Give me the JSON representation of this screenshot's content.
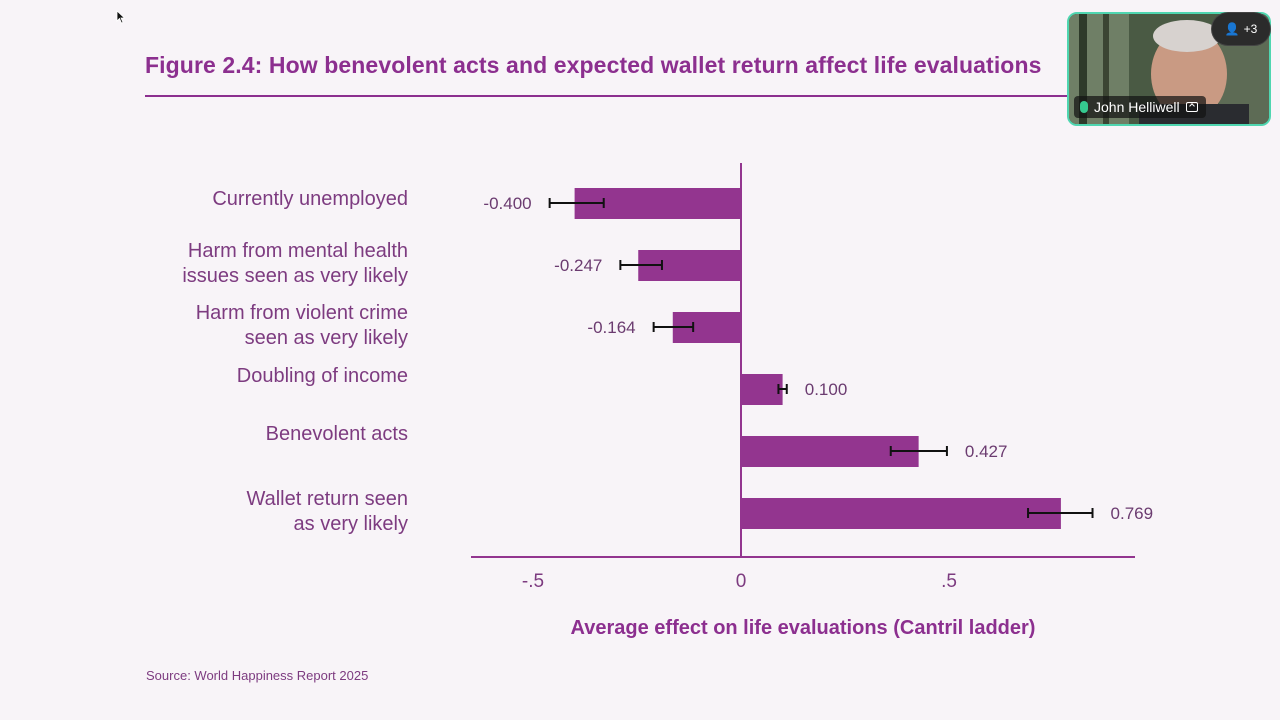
{
  "figure": {
    "title": "Figure 2.4: How benevolent acts and expected wallet return affect life evaluations",
    "source": "Source: World Happiness Report 2025"
  },
  "colors": {
    "accent": "#8c2f8f",
    "bar": "#93358f",
    "text": "#7d3b80",
    "background": "#f8f4f8"
  },
  "chart_data": {
    "type": "bar",
    "orientation": "horizontal",
    "categories": [
      [
        "Currently unemployed"
      ],
      [
        "Harm from mental health",
        "issues seen as very likely"
      ],
      [
        "Harm from violent crime",
        "seen as very likely"
      ],
      [
        "Doubling of income"
      ],
      [
        "Benevolent acts"
      ],
      [
        "Wallet return seen",
        "as very likely"
      ]
    ],
    "values": [
      -0.4,
      -0.247,
      -0.164,
      0.1,
      0.427,
      0.769
    ],
    "value_labels": [
      "-0.400",
      "-0.247",
      "-0.164",
      "0.100",
      "0.427",
      "0.769"
    ],
    "error_low": [
      -0.46,
      -0.29,
      -0.21,
      0.09,
      0.36,
      0.69
    ],
    "error_high": [
      -0.33,
      -0.19,
      -0.115,
      0.11,
      0.495,
      0.845
    ],
    "xlim": [
      -0.65,
      0.95
    ],
    "xticks": [
      -0.5,
      0,
      0.5
    ],
    "xtick_labels": [
      "-.5",
      "0",
      ".5"
    ],
    "xlabel": "Average effect on life evaluations (Cantril ladder)",
    "grid": false
  },
  "meeting": {
    "participant_name": "John Helliwell",
    "extra_participants": "+3"
  }
}
